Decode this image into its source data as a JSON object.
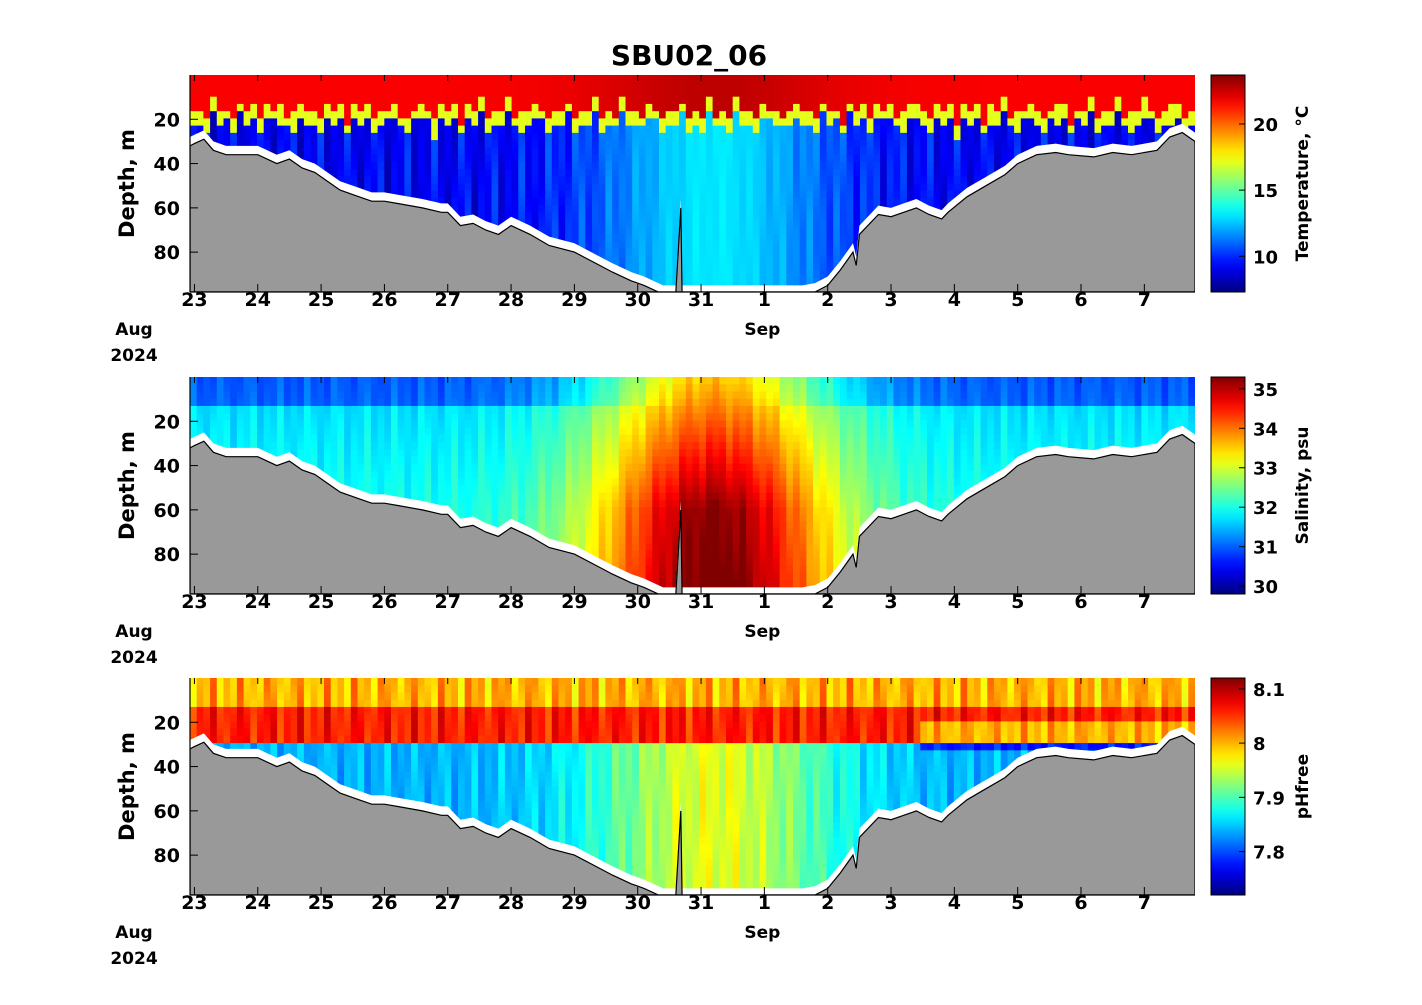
{
  "chart_data": {
    "type": "heatmap",
    "title": "SBU02_06",
    "x_tick_labels": [
      "23",
      "24",
      "25",
      "26",
      "27",
      "28",
      "29",
      "30",
      "31",
      "1",
      "2",
      "3",
      "4",
      "5",
      "6",
      "7"
    ],
    "x_month_labels": [
      {
        "at_tick": "23",
        "lines": [
          "Aug",
          "2024"
        ]
      },
      {
        "at_tick": "1",
        "lines": [
          "Sep"
        ]
      }
    ],
    "ylim": [
      0,
      98
    ],
    "y_ticks": [
      20,
      40,
      60,
      80
    ],
    "y_tick_labels": [
      "20",
      "40",
      "60",
      "80"
    ],
    "ylabel": "Depth, m",
    "x_range_days": [
      -0.07,
      15.8
    ],
    "bottom_depth": [
      [
        -0.07,
        32
      ],
      [
        0.0,
        31
      ],
      [
        0.15,
        29
      ],
      [
        0.3,
        34
      ],
      [
        0.5,
        36
      ],
      [
        1.0,
        36
      ],
      [
        1.3,
        40
      ],
      [
        1.5,
        38
      ],
      [
        1.7,
        42
      ],
      [
        1.9,
        44
      ],
      [
        2.1,
        48
      ],
      [
        2.3,
        52
      ],
      [
        2.6,
        55
      ],
      [
        2.8,
        57
      ],
      [
        3.0,
        57
      ],
      [
        3.2,
        58
      ],
      [
        3.6,
        60
      ],
      [
        3.9,
        62
      ],
      [
        4.0,
        62
      ],
      [
        4.2,
        68
      ],
      [
        4.4,
        67
      ],
      [
        4.6,
        70
      ],
      [
        4.8,
        72
      ],
      [
        5.0,
        68
      ],
      [
        5.3,
        72
      ],
      [
        5.6,
        77
      ],
      [
        6.0,
        80
      ],
      [
        6.4,
        86
      ],
      [
        6.6,
        89
      ],
      [
        6.9,
        93
      ],
      [
        7.1,
        95
      ],
      [
        7.4,
        99
      ],
      [
        7.5,
        99
      ],
      [
        7.6,
        99
      ],
      [
        7.68,
        60
      ],
      [
        7.7,
        99
      ],
      [
        8.0,
        99
      ],
      [
        8.5,
        99
      ],
      [
        9.0,
        99
      ],
      [
        9.6,
        99
      ],
      [
        9.8,
        98
      ],
      [
        10.0,
        95
      ],
      [
        10.2,
        88
      ],
      [
        10.4,
        80
      ],
      [
        10.45,
        86
      ],
      [
        10.5,
        72
      ],
      [
        10.8,
        63
      ],
      [
        11.0,
        64
      ],
      [
        11.2,
        62
      ],
      [
        11.4,
        60
      ],
      [
        11.6,
        63
      ],
      [
        11.8,
        65
      ],
      [
        11.9,
        62
      ],
      [
        12.2,
        55
      ],
      [
        12.5,
        50
      ],
      [
        12.8,
        45
      ],
      [
        13.0,
        40
      ],
      [
        13.3,
        36
      ],
      [
        13.6,
        35
      ],
      [
        13.8,
        36
      ],
      [
        14.2,
        37
      ],
      [
        14.5,
        35
      ],
      [
        14.8,
        36
      ],
      [
        15.2,
        34
      ],
      [
        15.4,
        28
      ],
      [
        15.6,
        26
      ],
      [
        15.75,
        29
      ],
      [
        15.8,
        30
      ]
    ],
    "panels": [
      {
        "variable": "Temperature",
        "colorbar_label": "Temperature, °C",
        "clim": [
          7.3,
          23.7
        ],
        "colorbar_ticks": [
          10,
          15,
          20
        ],
        "colorbar_tick_labels": [
          "10",
          "15",
          "20"
        ],
        "colormap": "jet"
      },
      {
        "variable": "Salinity",
        "colorbar_label": "Salinity, psu",
        "clim": [
          29.8,
          35.3
        ],
        "colorbar_ticks": [
          30,
          31,
          32,
          33,
          34,
          35
        ],
        "colorbar_tick_labels": [
          "30",
          "31",
          "32",
          "33",
          "34",
          "35"
        ],
        "colormap": "jet"
      },
      {
        "variable": "pHfree",
        "colorbar_label": "pHfree",
        "clim": [
          7.72,
          8.12
        ],
        "colorbar_ticks": [
          7.8,
          7.9,
          8.0,
          8.1
        ],
        "colorbar_tick_labels": [
          "7.8",
          "7.9",
          "8",
          "8.1"
        ],
        "colormap": "jet"
      }
    ]
  }
}
